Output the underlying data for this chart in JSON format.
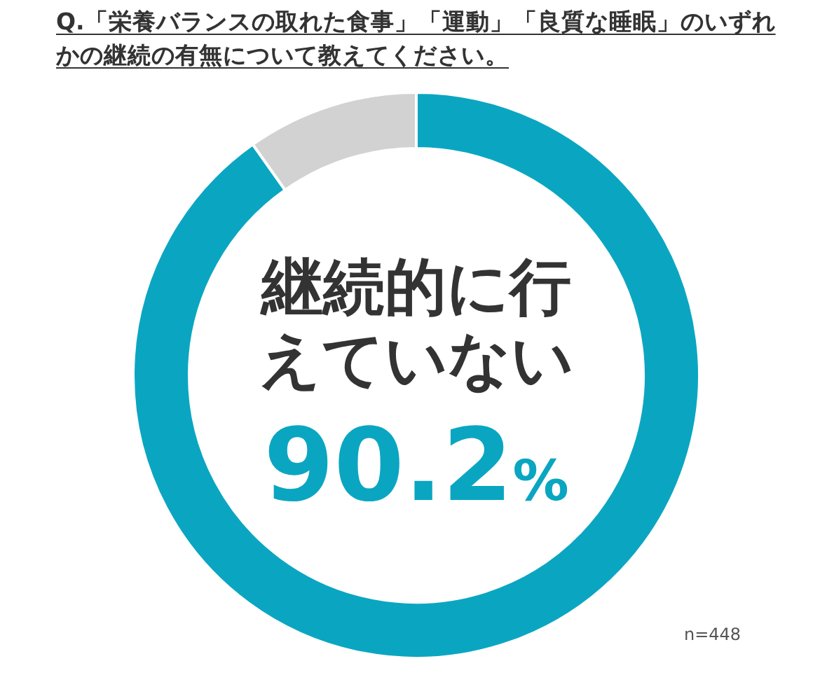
{
  "chart_data": {
    "type": "donut",
    "title": "Q.「栄養バランスの取れた食事」「運動」「良質な睡眠」のいずれかの継続の有無について教えてください。",
    "categories": [
      "継続的に行えていない",
      null
    ],
    "values": [
      90.2,
      9.8
    ],
    "colors": [
      "#0aa6c1",
      "#d2d2d2"
    ],
    "value_labels": [
      "90.2%",
      null
    ],
    "annotations": [
      "n=448"
    ]
  }
}
